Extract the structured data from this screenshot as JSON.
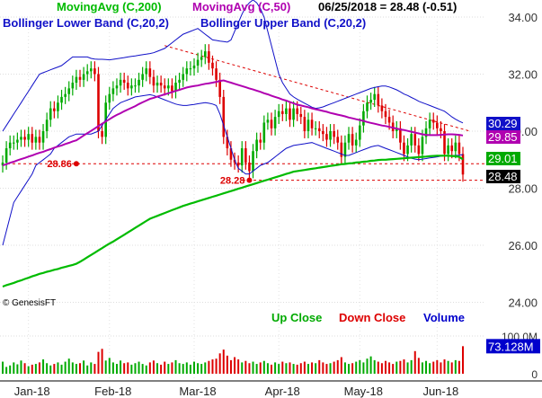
{
  "header": {
    "ma200_label": "MovingAvg (C,200)",
    "ma50_label": "MovingAvg (C,50)",
    "quote": "06/25/2018 = 28.48 (-0.51)",
    "bb_lower_label": "Bollinger Lower Band (C,20,2)",
    "bb_upper_label": "Bollinger Upper Band (C,20,2)"
  },
  "watermark": "© GenesisFT",
  "volume_legend": {
    "up": "Up Close",
    "down": "Down Close",
    "volume": "Volume"
  },
  "colors": {
    "ma200": "#00bb00",
    "ma50": "#b000b0",
    "bollinger": "#1010c8",
    "up": "#00aa00",
    "down": "#dd0000",
    "volume": "#0000cc",
    "annotation": "#dd0000",
    "tag_bb_upper": "#1010c8",
    "tag_ma50": "#b000b0",
    "tag_ma200": "#00aa00",
    "tag_last": "#000000"
  },
  "chart_data": {
    "type": "candlestick",
    "title": "",
    "x_ticks": [
      "Jan-18",
      "Feb-18",
      "Mar-18",
      "Apr-18",
      "May-18",
      "Jun-18"
    ],
    "y_ticks": [
      "34.00",
      "32.00",
      "30.00",
      "28.00",
      "26.00",
      "24.00"
    ],
    "ylim": [
      23.6,
      34.6
    ],
    "volume_ticks": [
      "100.0M",
      "0"
    ],
    "volume_ylim": [
      0,
      120
    ],
    "price_tags": [
      {
        "label": "30.29",
        "value": 30.29,
        "series": "bb_upper"
      },
      {
        "label": "29.85",
        "value": 29.85,
        "series": "ma50"
      },
      {
        "label": "29.01",
        "value": 29.01,
        "series": "ma200"
      },
      {
        "label": "28.48",
        "value": 28.48,
        "series": "last"
      }
    ],
    "volume_tag": "73.128M",
    "annotations": [
      {
        "label": "28.86",
        "value": 28.86,
        "x": 20
      },
      {
        "label": "28.28",
        "value": 28.28,
        "x": 67
      }
    ],
    "closes": [
      28.9,
      29.4,
      29.6,
      29.6,
      29.7,
      29.8,
      29.7,
      29.9,
      29.6,
      29.8,
      29.6,
      30.0,
      30.4,
      30.8,
      30.7,
      31.0,
      31.2,
      31.3,
      31.5,
      31.7,
      31.9,
      31.8,
      32.0,
      32.1,
      32.2,
      32.0,
      30.0,
      29.8,
      31.0,
      31.3,
      31.5,
      31.6,
      31.8,
      31.7,
      31.5,
      31.6,
      31.6,
      31.8,
      32.0,
      32.2,
      31.9,
      31.6,
      31.7,
      31.6,
      31.5,
      31.6,
      31.4,
      31.7,
      31.8,
      32.0,
      32.2,
      32.2,
      32.3,
      32.5,
      32.6,
      32.8,
      32.4,
      32.2,
      31.8,
      31.2,
      29.8,
      29.4,
      29.0,
      28.9,
      28.8,
      29.4,
      28.9,
      28.6,
      29.3,
      29.7,
      29.6,
      30.3,
      30.4,
      30.1,
      30.5,
      30.7,
      30.6,
      30.8,
      30.4,
      30.8,
      30.6,
      30.5,
      30.0,
      30.4,
      30.1,
      30.1,
      30.0,
      29.9,
      29.7,
      30.0,
      29.8,
      29.6,
      29.1,
      29.6,
      29.9,
      29.5,
      29.7,
      30.2,
      30.7,
      31.0,
      31.1,
      31.3,
      30.9,
      30.7,
      30.5,
      30.3,
      30.0,
      30.1,
      29.6,
      29.2,
      29.5,
      29.9,
      29.5,
      29.2,
      29.8,
      30.1,
      30.4,
      30.3,
      30.1,
      30.0,
      29.2,
      29.5,
      29.3,
      29.6,
      29.2,
      28.48
    ],
    "ma200": [
      24.55,
      24.6,
      24.64,
      24.68,
      24.73,
      24.77,
      24.82,
      24.86,
      24.91,
      24.95,
      25.0,
      25.03,
      25.07,
      25.1,
      25.14,
      25.17,
      25.21,
      25.24,
      25.28,
      25.31,
      25.35,
      25.42,
      25.5,
      25.58,
      25.66,
      25.74,
      25.82,
      25.9,
      25.98,
      26.06,
      26.13,
      26.21,
      26.29,
      26.37,
      26.45,
      26.53,
      26.61,
      26.69,
      26.77,
      26.85,
      26.93,
      26.98,
      27.03,
      27.08,
      27.13,
      27.18,
      27.23,
      27.28,
      27.33,
      27.38,
      27.42,
      27.46,
      27.5,
      27.54,
      27.58,
      27.62,
      27.66,
      27.7,
      27.74,
      27.78,
      27.82,
      27.86,
      27.9,
      27.94,
      27.98,
      28.02,
      28.06,
      28.1,
      28.14,
      28.18,
      28.22,
      28.26,
      28.3,
      28.34,
      28.38,
      28.42,
      28.46,
      28.5,
      28.54,
      28.58,
      28.6,
      28.62,
      28.64,
      28.66,
      28.68,
      28.7,
      28.72,
      28.74,
      28.76,
      28.78,
      28.8,
      28.82,
      28.84,
      28.85,
      28.87,
      28.88,
      28.9,
      28.91,
      28.93,
      28.94,
      28.96,
      28.97,
      28.99,
      29.0,
      29.0,
      29.01,
      29.02,
      29.03,
      29.04,
      29.05,
      29.06,
      29.07,
      29.08,
      29.09,
      29.1,
      29.11,
      29.12,
      29.13,
      29.14,
      29.14,
      29.14,
      29.14,
      29.13,
      29.12,
      29.1,
      29.01
    ],
    "ma50": [
      28.8,
      28.84,
      28.89,
      28.93,
      28.98,
      29.02,
      29.06,
      29.11,
      29.15,
      29.2,
      29.24,
      29.28,
      29.33,
      29.37,
      29.42,
      29.46,
      29.5,
      29.55,
      29.59,
      29.64,
      29.68,
      29.76,
      29.85,
      29.93,
      30.01,
      30.09,
      30.18,
      30.26,
      30.34,
      30.42,
      30.5,
      30.57,
      30.63,
      30.7,
      30.76,
      30.82,
      30.88,
      30.95,
      31.01,
      31.07,
      31.13,
      31.17,
      31.21,
      31.25,
      31.29,
      31.33,
      31.37,
      31.41,
      31.45,
      31.49,
      31.53,
      31.56,
      31.58,
      31.6,
      31.63,
      31.66,
      31.68,
      31.7,
      31.73,
      31.76,
      31.78,
      31.74,
      31.7,
      31.66,
      31.62,
      31.58,
      31.54,
      31.5,
      31.46,
      31.42,
      31.38,
      31.33,
      31.29,
      31.24,
      31.2,
      31.16,
      31.11,
      31.07,
      31.02,
      30.98,
      30.93,
      30.9,
      30.87,
      30.84,
      30.8,
      30.77,
      30.74,
      30.71,
      30.68,
      30.64,
      30.61,
      30.58,
      30.55,
      30.52,
      30.48,
      30.45,
      30.42,
      30.39,
      30.36,
      30.32,
      30.29,
      30.26,
      30.23,
      30.2,
      30.18,
      30.15,
      30.12,
      30.09,
      30.06,
      30.04,
      30.01,
      29.98,
      29.95,
      29.92,
      29.89,
      29.87,
      29.86,
      29.86,
      29.86,
      29.87,
      29.88,
      29.89,
      29.89,
      29.88,
      29.87,
      29.85
    ],
    "bb_upper": [
      30.0,
      30.2,
      30.4,
      30.6,
      30.8,
      31.0,
      31.2,
      31.4,
      31.6,
      31.8,
      32.0,
      32.05,
      32.1,
      32.15,
      32.2,
      32.25,
      32.3,
      32.4,
      32.5,
      32.6,
      32.6,
      32.6,
      32.6,
      32.6,
      32.55,
      32.53,
      32.52,
      32.52,
      32.51,
      32.5,
      32.52,
      32.54,
      32.56,
      32.58,
      32.6,
      32.62,
      32.64,
      32.66,
      32.68,
      32.7,
      32.72,
      32.75,
      32.8,
      32.85,
      32.9,
      33.0,
      33.1,
      33.2,
      33.3,
      33.4,
      33.45,
      33.5,
      33.55,
      33.6,
      33.5,
      33.4,
      33.3,
      33.2,
      33.18,
      33.16,
      33.14,
      33.12,
      33.2,
      33.5,
      33.8,
      34.1,
      34.35,
      34.5,
      34.6,
      34.5,
      34.3,
      34.0,
      33.5,
      33.0,
      32.5,
      32.0,
      31.7,
      31.5,
      31.3,
      31.2,
      31.12,
      31.05,
      30.98,
      30.91,
      30.84,
      30.8,
      30.82,
      30.85,
      30.9,
      30.95,
      31.0,
      31.05,
      31.1,
      31.15,
      31.2,
      31.25,
      31.3,
      31.35,
      31.4,
      31.45,
      31.5,
      31.53,
      31.56,
      31.58,
      31.58,
      31.55,
      31.5,
      31.45,
      31.38,
      31.3,
      31.25,
      31.18,
      31.12,
      31.05,
      31.0,
      30.95,
      30.9,
      30.85,
      30.8,
      30.75,
      30.7,
      30.6,
      30.5,
      30.42,
      30.35,
      30.29
    ],
    "bb_lower": [
      26.0,
      26.5,
      27.0,
      27.5,
      27.7,
      27.9,
      28.1,
      28.3,
      28.5,
      28.8,
      28.9,
      29.0,
      29.1,
      29.2,
      29.4,
      29.5,
      29.6,
      29.7,
      29.8,
      29.85,
      29.9,
      29.9,
      29.9,
      29.9,
      29.9,
      29.95,
      30.0,
      30.2,
      30.4,
      30.6,
      30.8,
      30.9,
      31.0,
      31.05,
      31.1,
      31.15,
      31.2,
      31.22,
      31.24,
      31.26,
      31.28,
      31.25,
      31.2,
      31.15,
      31.1,
      31.05,
      31.0,
      30.95,
      30.92,
      30.9,
      30.9,
      30.92,
      30.94,
      30.96,
      30.98,
      31.0,
      30.98,
      30.95,
      30.9,
      30.6,
      30.2,
      29.8,
      29.4,
      29.0,
      28.7,
      28.6,
      28.5,
      28.5,
      28.6,
      28.7,
      28.8,
      28.85,
      28.9,
      29.0,
      29.1,
      29.2,
      29.3,
      29.4,
      29.45,
      29.5,
      29.52,
      29.54,
      29.56,
      29.58,
      29.6,
      29.55,
      29.5,
      29.45,
      29.4,
      29.35,
      29.3,
      29.25,
      29.2,
      29.15,
      29.15,
      29.2,
      29.25,
      29.3,
      29.35,
      29.4,
      29.45,
      29.48,
      29.5,
      29.45,
      29.4,
      29.35,
      29.3,
      29.25,
      29.2,
      29.15,
      29.1,
      29.05,
      29.02,
      29.0,
      29.02,
      29.04,
      29.06,
      29.08,
      29.1,
      29.12,
      29.14,
      29.14,
      29.15,
      29.15,
      29.16,
      29.18
    ],
    "volume": [
      32,
      18,
      22,
      30,
      25,
      35,
      28,
      20,
      24,
      26,
      30,
      38,
      28,
      22,
      26,
      30,
      24,
      32,
      40,
      30,
      26,
      28,
      35,
      22,
      30,
      26,
      58,
      66,
      35,
      42,
      30,
      26,
      35,
      28,
      30,
      24,
      28,
      32,
      26,
      22,
      30,
      35,
      28,
      24,
      32,
      26,
      30,
      36,
      28,
      26,
      30,
      24,
      32,
      28,
      26,
      30,
      34,
      38,
      40,
      54,
      64,
      48,
      36,
      44,
      38,
      30,
      34,
      28,
      32,
      26,
      30,
      34,
      28,
      24,
      30,
      26,
      32,
      28,
      30,
      26,
      24,
      28,
      32,
      26,
      30,
      28,
      36,
      30,
      26,
      28,
      32,
      36,
      44,
      30,
      26,
      28,
      32,
      36,
      30,
      40,
      46,
      36,
      32,
      28,
      34,
      30,
      26,
      32,
      34,
      38,
      30,
      36,
      60,
      42,
      30,
      34,
      28,
      32,
      36,
      30,
      38,
      34,
      30,
      36,
      34,
      73
    ]
  }
}
